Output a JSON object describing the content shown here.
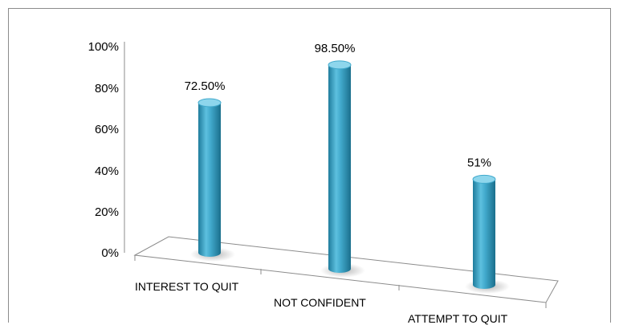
{
  "chart_data": {
    "type": "bar",
    "style": "3d-cylinder",
    "categories": [
      "INTEREST TO QUIT",
      "NOT CONFIDENT",
      "ATTEMPT TO QUIT"
    ],
    "values": [
      72.5,
      98.5,
      51
    ],
    "data_labels": [
      "72.50%",
      "98.50%",
      "51%"
    ],
    "yticks": [
      "0%",
      "20%",
      "40%",
      "60%",
      "80%",
      "100%"
    ],
    "ylim": [
      0,
      100
    ],
    "title": "",
    "xlabel": "",
    "ylabel": "",
    "grid": false,
    "legend": "none",
    "bar_color": "#41A9CC",
    "bar_shade": "#1F7C9C",
    "bar_highlight": "#8ED6EC"
  }
}
